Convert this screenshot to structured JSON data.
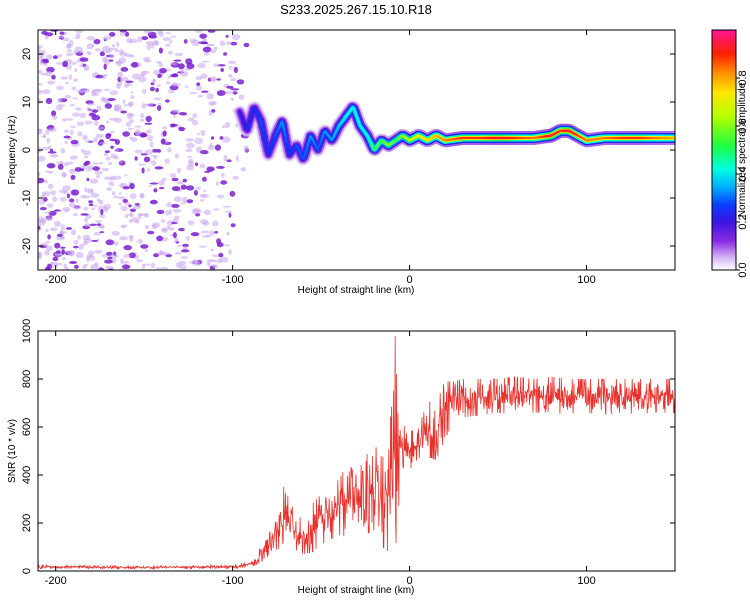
{
  "figure_title": "S233.2025.267.15.10.R18",
  "colors": {
    "snr_line": "#e8312c",
    "axis": "#000000",
    "speckle_dark": "#7a1fd1",
    "speckle_light": "#c9a6ee",
    "colormap": [
      "#ffffff",
      "#c8a2f0",
      "#8a2be2",
      "#3b14e0",
      "#0a3cff",
      "#00b4ff",
      "#00ffe0",
      "#20ff40",
      "#b6ff00",
      "#ffe600",
      "#ff9000",
      "#ff2000",
      "#ff1493"
    ]
  },
  "chart_data": [
    {
      "type": "heatmap",
      "title": "S233.2025.267.15.10.R18",
      "xlabel": "Height of straight line (km)",
      "ylabel": "Frequency (Hz)",
      "xlim": [
        -210,
        150
      ],
      "ylim": [
        -25,
        25
      ],
      "xticks": [
        -200,
        -100,
        0,
        100
      ],
      "yticks": [
        -20,
        -10,
        0,
        10,
        20
      ],
      "colorbar": {
        "label": "Normalized spectral amplitude",
        "range": [
          0.0,
          1.0
        ],
        "ticks": [
          0.0,
          0.2,
          0.4,
          0.6,
          0.8
        ]
      },
      "noise_region_x": [
        -210,
        -95
      ],
      "ridge": {
        "x": [
          -96,
          -92,
          -88,
          -84,
          -80,
          -76,
          -72,
          -68,
          -64,
          -60,
          -56,
          -52,
          -48,
          -44,
          -40,
          -36,
          -32,
          -28,
          -24,
          -20,
          -16,
          -12,
          -8,
          -4,
          0,
          5,
          10,
          15,
          20,
          30,
          40,
          50,
          60,
          70,
          80,
          85,
          90,
          95,
          100,
          110,
          120,
          130,
          140,
          150
        ],
        "frequency": [
          8,
          4,
          9,
          6,
          -1,
          3,
          6,
          -1,
          1,
          -2,
          3,
          0,
          4,
          2,
          5,
          7,
          9,
          5,
          3,
          0,
          2,
          1,
          2,
          3,
          2,
          3,
          2,
          3,
          2,
          2.5,
          2.5,
          2.5,
          2.5,
          2.5,
          3,
          4,
          4,
          3,
          2,
          2.5,
          2.5,
          2.5,
          2.5,
          2.5
        ],
        "amplitude": [
          0.25,
          0.3,
          0.3,
          0.35,
          0.3,
          0.35,
          0.4,
          0.3,
          0.35,
          0.35,
          0.4,
          0.35,
          0.4,
          0.4,
          0.45,
          0.5,
          0.5,
          0.5,
          0.5,
          0.6,
          0.6,
          0.65,
          0.6,
          0.65,
          0.7,
          0.75,
          0.75,
          0.8,
          0.85,
          0.9,
          0.9,
          0.95,
          0.9,
          0.85,
          0.95,
          0.9,
          0.95,
          0.9,
          0.85,
          0.85,
          0.9,
          0.9,
          0.85,
          0.8
        ]
      }
    },
    {
      "type": "line",
      "xlabel": "Height of straight line (km)",
      "ylabel": "SNR (10 * v/v)",
      "xlim": [
        -210,
        150
      ],
      "ylim": [
        0,
        1000
      ],
      "xticks": [
        -200,
        -100,
        0,
        100
      ],
      "yticks": [
        0,
        200,
        400,
        600,
        800,
        1000
      ],
      "series": [
        {
          "name": "SNR",
          "envelope_x": [
            -210,
            -150,
            -100,
            -90,
            -85,
            -80,
            -75,
            -70,
            -65,
            -60,
            -55,
            -50,
            -45,
            -40,
            -35,
            -30,
            -25,
            -20,
            -15,
            -12,
            -10,
            -8,
            -5,
            0,
            5,
            10,
            15,
            20,
            25,
            30,
            40,
            50,
            60,
            70,
            80,
            90,
            100,
            110,
            120,
            130,
            140,
            150
          ],
          "envelope_low": [
            10,
            10,
            10,
            15,
            30,
            60,
            90,
            100,
            90,
            70,
            80,
            110,
            130,
            150,
            140,
            160,
            150,
            170,
            100,
            80,
            60,
            80,
            380,
            420,
            470,
            480,
            460,
            550,
            620,
            640,
            650,
            660,
            650,
            660,
            660,
            650,
            660,
            650,
            660,
            650,
            660,
            660
          ],
          "envelope_high": [
            25,
            20,
            25,
            40,
            90,
            160,
            250,
            380,
            230,
            220,
            280,
            320,
            360,
            380,
            450,
            400,
            480,
            520,
            500,
            540,
            700,
            1000,
            620,
            580,
            600,
            700,
            720,
            790,
            790,
            800,
            800,
            800,
            810,
            800,
            810,
            800,
            800,
            800,
            800,
            800,
            800,
            800
          ]
        }
      ]
    }
  ]
}
